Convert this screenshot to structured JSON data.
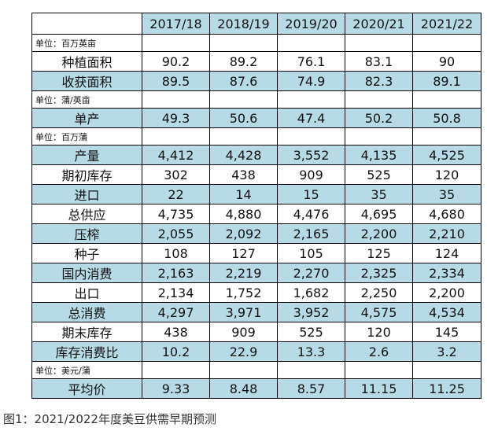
{
  "years": [
    "2017/18",
    "2018/19",
    "2019/20",
    "2020/21",
    "2021/22"
  ],
  "units": {
    "u1": "单位：百万英亩",
    "u2": "单位：蒲/英亩",
    "u3": "单位：百万蒲",
    "u4": "单位：美元/蒲"
  },
  "rows": {
    "planted": {
      "label": "种植面积",
      "values": [
        "90.2",
        "89.2",
        "76.1",
        "83.1",
        "90"
      ]
    },
    "harvested": {
      "label": "收获面积",
      "values": [
        "89.5",
        "87.6",
        "74.9",
        "82.3",
        "89.1"
      ]
    },
    "yield": {
      "label": "单产",
      "values": [
        "49.3",
        "50.6",
        "47.4",
        "50.2",
        "50.8"
      ]
    },
    "production": {
      "label": "产量",
      "values": [
        "4,412",
        "4,428",
        "3,552",
        "4,135",
        "4,525"
      ]
    },
    "beg_stocks": {
      "label": "期初库存",
      "values": [
        "302",
        "438",
        "909",
        "525",
        "120"
      ]
    },
    "imports": {
      "label": "进口",
      "values": [
        "22",
        "14",
        "15",
        "35",
        "35"
      ]
    },
    "supply": {
      "label": "总供应",
      "values": [
        "4,735",
        "4,880",
        "4,476",
        "4,695",
        "4,680"
      ]
    },
    "crush": {
      "label": "压榨",
      "values": [
        "2,055",
        "2,092",
        "2,165",
        "2,200",
        "2,210"
      ]
    },
    "seed": {
      "label": "种子",
      "values": [
        "108",
        "127",
        "105",
        "125",
        "124"
      ]
    },
    "domestic": {
      "label": "国内消费",
      "values": [
        "2,163",
        "2,219",
        "2,270",
        "2,325",
        "2,334"
      ]
    },
    "exports": {
      "label": "出口",
      "values": [
        "2,134",
        "1,752",
        "1,682",
        "2,250",
        "2,200"
      ]
    },
    "total_use": {
      "label": "总消费",
      "values": [
        "4,297",
        "3,971",
        "3,952",
        "4,575",
        "4,534"
      ]
    },
    "end_stocks": {
      "label": "期末库存",
      "values": [
        "438",
        "909",
        "525",
        "120",
        "145"
      ]
    },
    "stocks_ratio": {
      "label": "库存消费比",
      "values": [
        "10.2",
        "22.9",
        "13.3",
        "2.6",
        "3.2"
      ]
    },
    "price": {
      "label": "平均价",
      "values": [
        "9.33",
        "8.48",
        "8.57",
        "11.15",
        "11.25"
      ]
    }
  },
  "caption": "图1：2021/2022年度美豆供需早期预测"
}
